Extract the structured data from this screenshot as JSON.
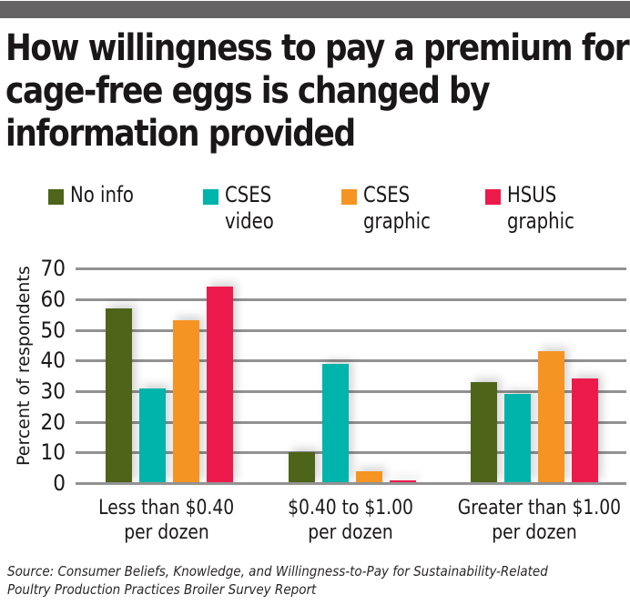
{
  "header": {
    "title_lines": [
      "How willingness to pay a premium for",
      "cage-free eggs is changed by",
      "information provided"
    ]
  },
  "legend": {
    "items": [
      {
        "line1": "No info",
        "line2": "",
        "color": "#4e6419"
      },
      {
        "line1": "CSES",
        "line2": "video",
        "color": "#00b3ab"
      },
      {
        "line1": "CSES",
        "line2": "graphic",
        "color": "#f59422"
      },
      {
        "line1": "HSUS",
        "line2": "graphic",
        "color": "#ed1b4b"
      }
    ]
  },
  "axes": {
    "ylabel": "Percent of respondents",
    "yticks": [
      "70",
      "60",
      "50",
      "40",
      "30",
      "20",
      "10",
      "0"
    ]
  },
  "categories": [
    {
      "line1": "Less than $0.40",
      "line2": "per dozen"
    },
    {
      "line1": "$0.40 to $1.00",
      "line2": "per dozen"
    },
    {
      "line1": "Greater than $1.00",
      "line2": "per dozen"
    }
  ],
  "source": {
    "line1": "Source: Consumer Beliefs, Knowledge, and Willingness-to-Pay for Sustainability-Related",
    "line2": "Poultry Production Practices Broiler Survey Report"
  },
  "chart_data": {
    "type": "bar",
    "title": "How willingness to pay a premium for cage-free eggs is changed by information provided",
    "xlabel": "",
    "ylabel": "Percent of respondents",
    "ylim": [
      0,
      70
    ],
    "yticks": [
      0,
      10,
      20,
      30,
      40,
      50,
      60,
      70
    ],
    "grid": true,
    "legend_position": "top",
    "categories": [
      "Less than $0.40 per dozen",
      "$0.40 to $1.00 per dozen",
      "Greater than $1.00 per dozen"
    ],
    "series": [
      {
        "name": "No info",
        "color": "#4e6419",
        "values": [
          57,
          10,
          33
        ]
      },
      {
        "name": "CSES video",
        "color": "#00b3ab",
        "values": [
          31,
          39,
          29
        ]
      },
      {
        "name": "CSES graphic",
        "color": "#f59422",
        "values": [
          53,
          4,
          43
        ]
      },
      {
        "name": "HSUS graphic",
        "color": "#ed1b4b",
        "values": [
          64,
          1,
          34
        ]
      }
    ],
    "annotations": [
      "Source: Consumer Beliefs, Knowledge, and Willingness-to-Pay for Sustainability-Related Poultry Production Practices Broiler Survey Report"
    ]
  }
}
